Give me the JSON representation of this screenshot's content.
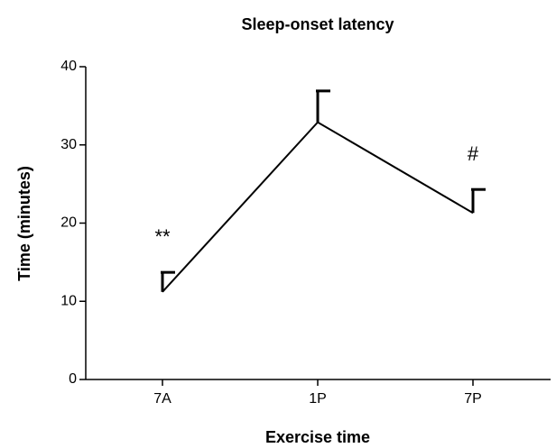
{
  "chart_data": {
    "type": "line",
    "title": "Sleep-onset latency",
    "xlabel": "Exercise time",
    "ylabel": "Time (minutes)",
    "categories": [
      "7A",
      "1P",
      "7P"
    ],
    "series": [
      {
        "name": "Sleep-onset latency",
        "color": "#000000",
        "values": [
          11.2,
          32.9,
          21.3
        ],
        "errors": [
          2.5,
          4.0,
          3.0
        ]
      }
    ],
    "ylim": [
      0,
      40
    ],
    "yticks": [
      0,
      10,
      20,
      30,
      40
    ],
    "annotations": [
      {
        "text": "**",
        "category": "7A"
      },
      {
        "text": "#",
        "category": "7P"
      }
    ]
  }
}
